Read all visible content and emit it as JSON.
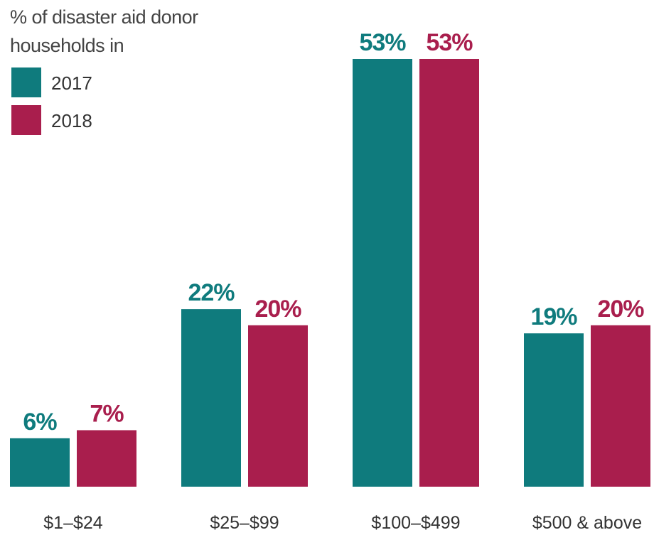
{
  "chart_data": {
    "type": "bar",
    "title": "% of disaster aid donor households in",
    "categories": [
      "$1–$24",
      "$25–$99",
      "$100–$499",
      "$500 & above"
    ],
    "series": [
      {
        "name": "2017",
        "color": "#0f7b7d",
        "values": [
          6,
          22,
          53,
          19
        ],
        "value_labels": [
          "6%",
          "22%",
          "53%",
          "19%"
        ]
      },
      {
        "name": "2018",
        "color": "#a91e4d",
        "values": [
          7,
          20,
          53,
          20
        ],
        "value_labels": [
          "7%",
          "20%",
          "53%",
          "20%"
        ]
      }
    ],
    "legend": "top-left"
  }
}
